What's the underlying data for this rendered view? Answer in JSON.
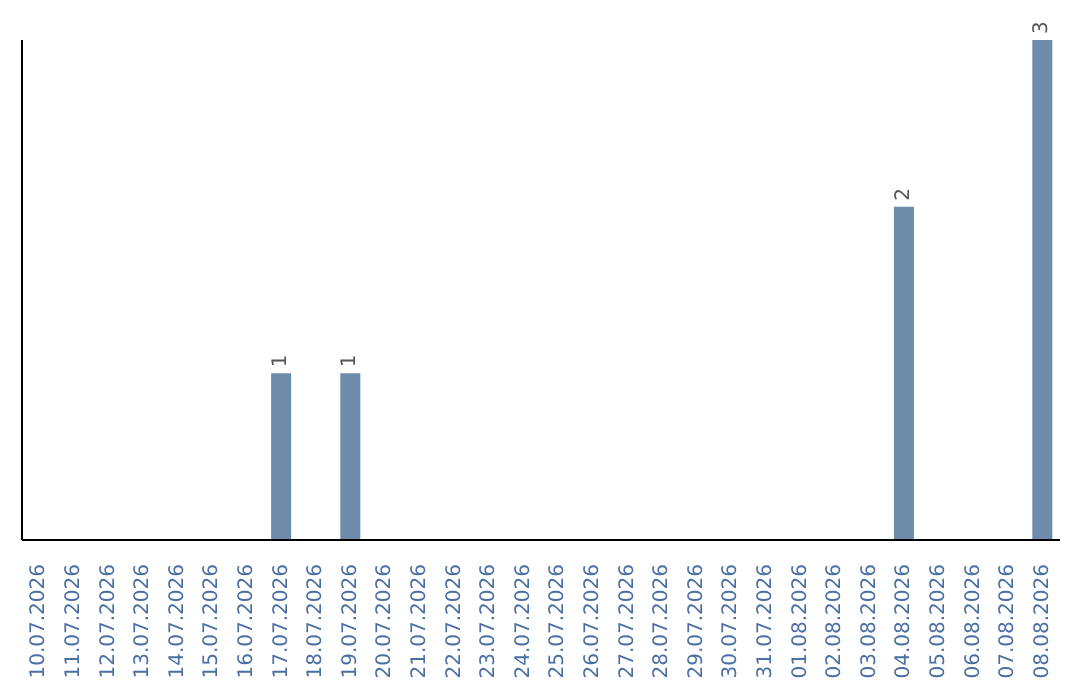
{
  "chart_data": {
    "type": "bar",
    "categories": [
      "10.07.2026",
      "11.07.2026",
      "12.07.2026",
      "13.07.2026",
      "14.07.2026",
      "15.07.2026",
      "16.07.2026",
      "17.07.2026",
      "18.07.2026",
      "19.07.2026",
      "20.07.2026",
      "21.07.2026",
      "22.07.2026",
      "23.07.2026",
      "24.07.2026",
      "25.07.2026",
      "26.07.2026",
      "27.07.2026",
      "28.07.2026",
      "29.07.2026",
      "30.07.2026",
      "31.07.2026",
      "01.08.2026",
      "02.08.2026",
      "03.08.2026",
      "04.08.2026",
      "05.08.2026",
      "06.08.2026",
      "07.08.2026",
      "08.08.2026"
    ],
    "values": [
      0,
      0,
      0,
      0,
      0,
      0,
      0,
      1,
      0,
      1,
      0,
      0,
      0,
      0,
      0,
      0,
      0,
      0,
      0,
      0,
      0,
      0,
      0,
      0,
      0,
      2,
      0,
      0,
      0,
      3
    ],
    "value_labels": [
      null,
      null,
      null,
      null,
      null,
      null,
      null,
      "1",
      null,
      "1",
      null,
      null,
      null,
      null,
      null,
      null,
      null,
      null,
      null,
      null,
      null,
      null,
      null,
      null,
      null,
      "2",
      null,
      null,
      null,
      "3"
    ],
    "color": "#6d8bab"
  }
}
